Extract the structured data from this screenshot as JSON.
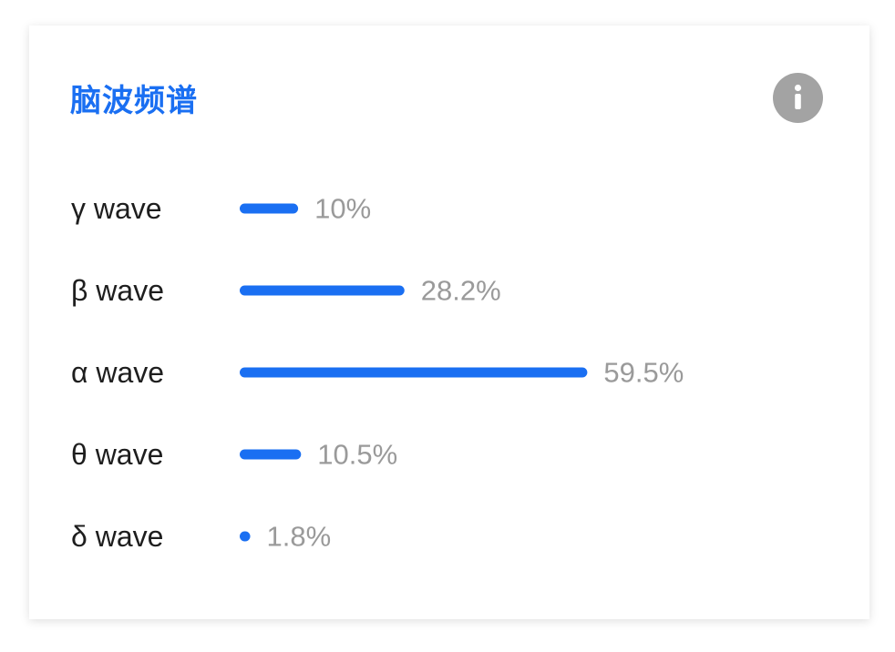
{
  "card": {
    "title": "脑波频谱",
    "info_icon": "info-icon"
  },
  "colors": {
    "title": "#1a6ff2",
    "bar": "#1a6ff2",
    "value_text": "#9a9a9a",
    "label_text": "#1e1e1e",
    "info_badge": "#a3a3a3"
  },
  "chart_data": {
    "type": "bar",
    "orientation": "horizontal",
    "categories": [
      "γ wave",
      "β wave",
      "α wave",
      "θ wave",
      "δ wave"
    ],
    "values": [
      10,
      28.2,
      59.5,
      10.5,
      1.8
    ],
    "value_labels": [
      "10%",
      "28.2%",
      "59.5%",
      "10.5%",
      "1.8%"
    ],
    "unit": "%",
    "title": "脑波频谱",
    "xlim": [
      0,
      100
    ],
    "grid": false,
    "legend": "none"
  }
}
